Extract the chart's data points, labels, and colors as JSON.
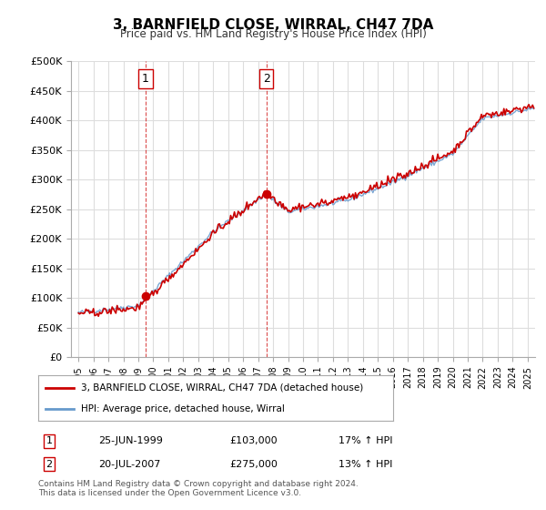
{
  "title": "3, BARNFIELD CLOSE, WIRRAL, CH47 7DA",
  "subtitle": "Price paid vs. HM Land Registry's House Price Index (HPI)",
  "ylabel": "",
  "xlim_start": 1994.5,
  "xlim_end": 2025.5,
  "ylim": [
    0,
    500000
  ],
  "yticks": [
    0,
    50000,
    100000,
    150000,
    200000,
    250000,
    300000,
    350000,
    400000,
    450000,
    500000
  ],
  "ytick_labels": [
    "£0",
    "£50K",
    "£100K",
    "£150K",
    "£200K",
    "£250K",
    "£300K",
    "£350K",
    "£400K",
    "£450K",
    "£500K"
  ],
  "sale1_x": 1999.48,
  "sale1_y": 103000,
  "sale1_label": "1",
  "sale1_date": "25-JUN-1999",
  "sale1_price": "£103,000",
  "sale1_hpi": "17% ↑ HPI",
  "sale2_x": 2007.55,
  "sale2_y": 275000,
  "sale2_label": "2",
  "sale2_date": "20-JUL-2007",
  "sale2_price": "£275,000",
  "sale2_hpi": "13% ↑ HPI",
  "line_color_property": "#cc0000",
  "line_color_hpi": "#6699cc",
  "vline_color": "#cc0000",
  "legend_label_property": "3, BARNFIELD CLOSE, WIRRAL, CH47 7DA (detached house)",
  "legend_label_hpi": "HPI: Average price, detached house, Wirral",
  "footer": "Contains HM Land Registry data © Crown copyright and database right 2024.\nThis data is licensed under the Open Government Licence v3.0.",
  "background_color": "#ffffff",
  "grid_color": "#dddddd"
}
